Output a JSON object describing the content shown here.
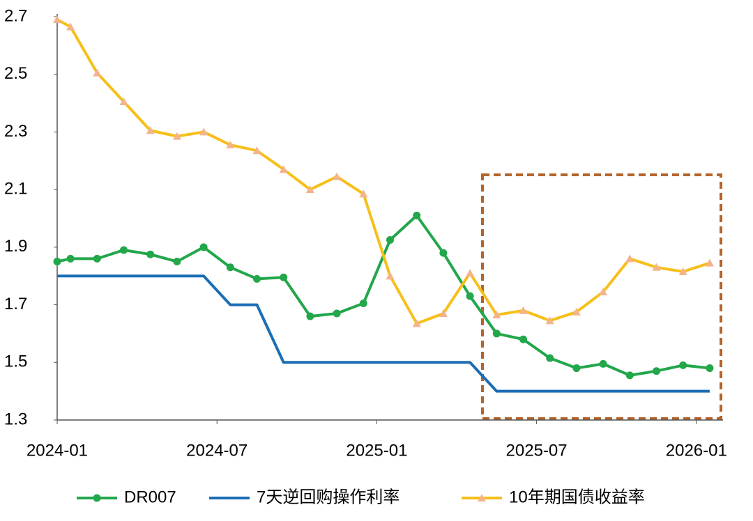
{
  "chart_data": {
    "type": "line",
    "x": [
      0,
      0.5,
      1.5,
      2.5,
      3.5,
      4.5,
      5.5,
      6.5,
      7.5,
      8.5,
      9.5,
      10.5,
      11.5,
      12.5,
      13.5,
      14.5,
      15.5,
      16.5,
      17.5,
      18.5,
      19.5,
      20.5,
      21.5,
      22.5,
      23.5,
      24.5
    ],
    "xlim": [
      0,
      25
    ],
    "xticks": [
      {
        "value": 0,
        "label": "2024-01"
      },
      {
        "value": 6,
        "label": "2024-07"
      },
      {
        "value": 12,
        "label": "2025-01"
      },
      {
        "value": 18,
        "label": "2025-07"
      },
      {
        "value": 24,
        "label": "2026-01"
      }
    ],
    "ylim": [
      1.3,
      2.7
    ],
    "yticks": [
      1.3,
      1.5,
      1.7,
      1.9,
      2.1,
      2.3,
      2.5,
      2.7
    ],
    "grid": false,
    "legend": "bottom",
    "series": [
      {
        "name": "DR007",
        "color": "#22a74b",
        "marker": "circle",
        "values": [
          1.85,
          1.86,
          1.86,
          1.89,
          1.875,
          1.85,
          1.9,
          1.83,
          1.79,
          1.795,
          1.66,
          1.67,
          1.705,
          1.925,
          2.01,
          1.88,
          1.73,
          1.6,
          1.58,
          1.515,
          1.48,
          1.495,
          1.455,
          1.47,
          1.49,
          1.48
        ]
      },
      {
        "name": "7天逆回购操作利率",
        "color": "#1b6db5",
        "marker": "none",
        "values": [
          1.8,
          1.8,
          1.8,
          1.8,
          1.8,
          1.8,
          1.8,
          1.7,
          1.7,
          1.5,
          1.5,
          1.5,
          1.5,
          1.5,
          1.5,
          1.5,
          1.5,
          1.4,
          1.4,
          1.4,
          1.4,
          1.4,
          1.4,
          1.4,
          1.4,
          1.4
        ]
      },
      {
        "name": "10年期国债收益率",
        "color": "#f6bf1a",
        "marker": "triangle",
        "marker_color": "#f3b48c",
        "values": [
          2.69,
          2.665,
          2.505,
          2.405,
          2.305,
          2.285,
          2.3,
          2.255,
          2.235,
          2.17,
          2.1,
          2.145,
          2.085,
          1.8,
          1.635,
          1.67,
          1.81,
          1.665,
          1.68,
          1.645,
          1.675,
          1.745,
          1.86,
          1.83,
          1.815,
          1.845
        ]
      }
    ]
  }
}
